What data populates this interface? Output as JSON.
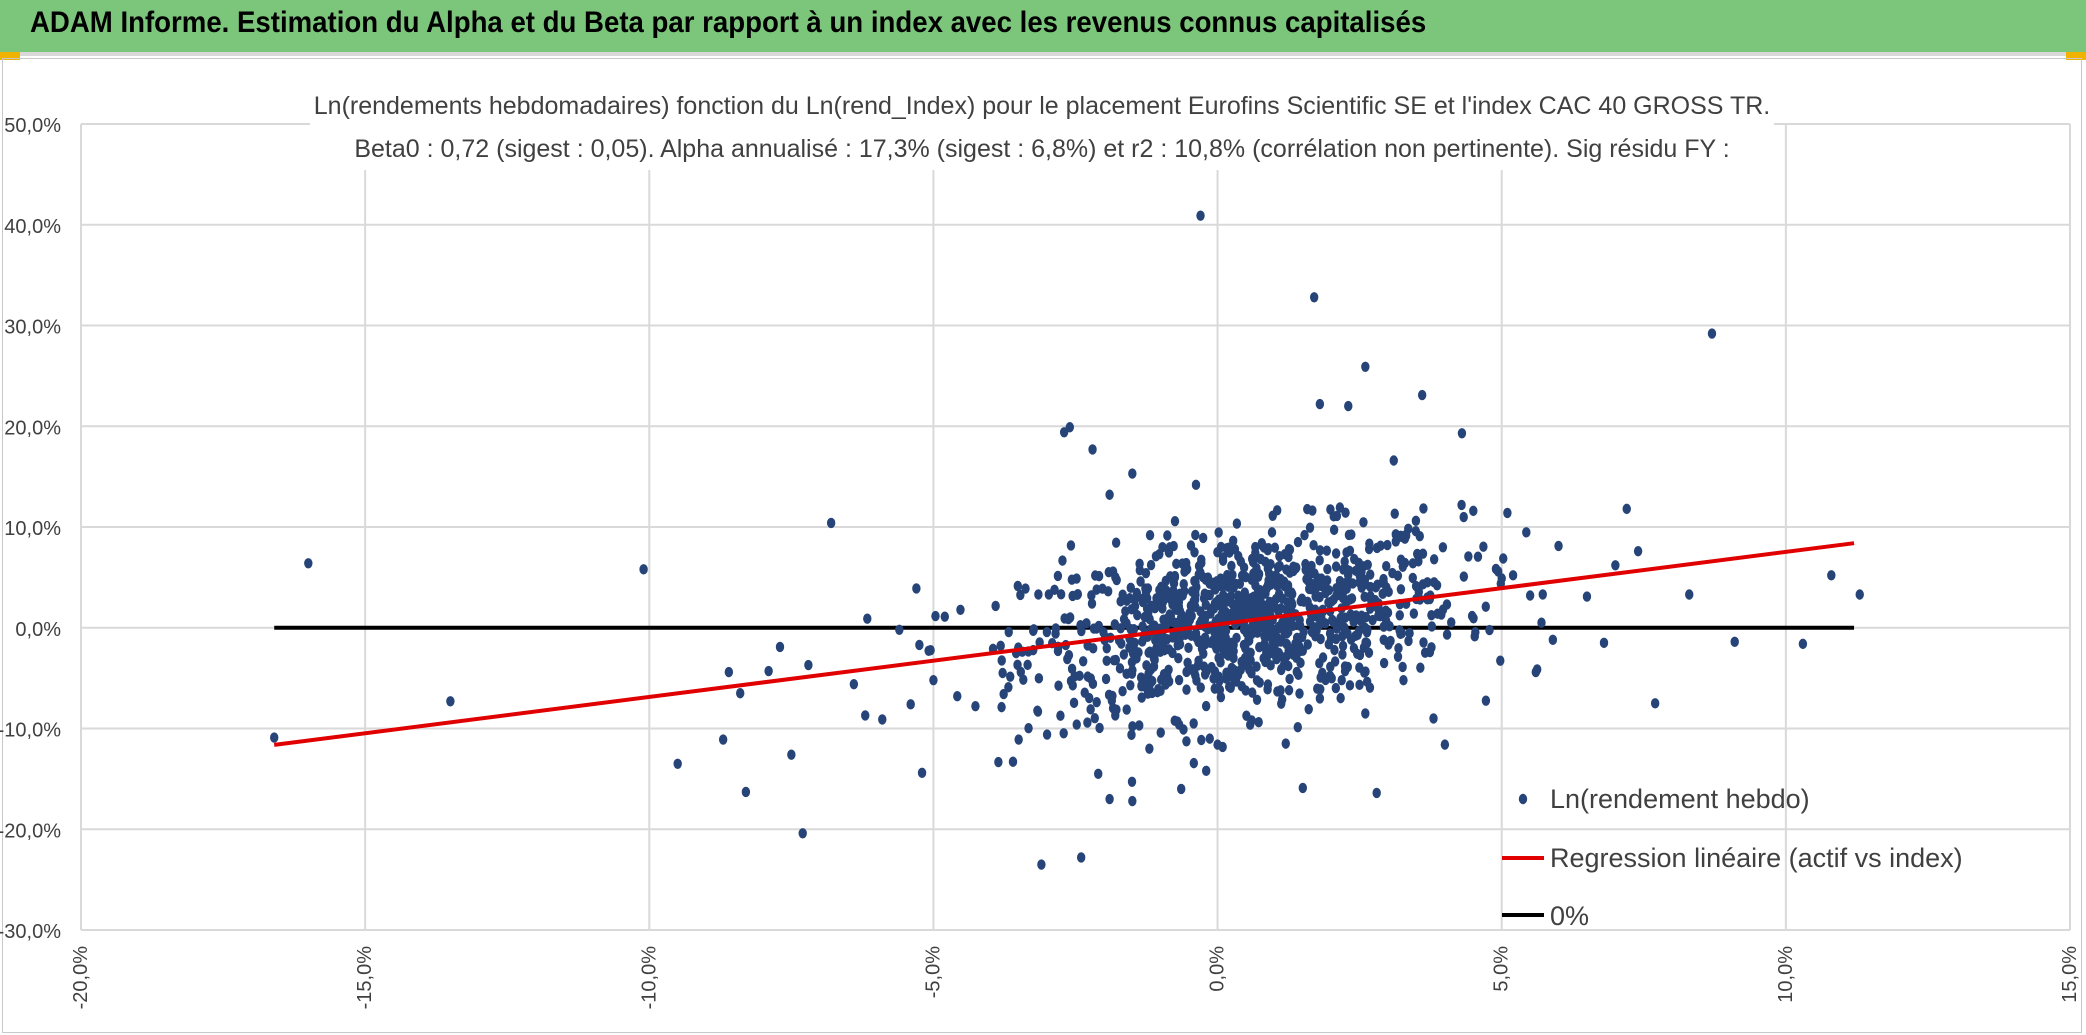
{
  "banner": {
    "title": "ADAM Informe. Estimation du Alpha et du Beta par rapport à un index avec les revenus connus capitalisés"
  },
  "colors": {
    "banner": "#7cc67c",
    "points": "#264478",
    "regression": "#e00000",
    "zero": "#000000",
    "grid": "#d9d9d9"
  },
  "chart_data": {
    "type": "scatter",
    "title": "Ln(rendements hebdomadaires) fonction du Ln(rend_Index) pour le placement Eurofins Scientific SE et l'index CAC 40 GROSS TR.",
    "subtitle": "Beta0 : 0,72 (sigest : 0,05). Alpha annualisé : 17,3% (sigest : 6,8%) et r2 : 10,8% (corrélation non pertinente). Sig résidu FY :",
    "xlim": [
      -20,
      15
    ],
    "ylim": [
      -30,
      50
    ],
    "x_ticks": [
      -20,
      -15,
      -10,
      -5,
      0,
      5,
      10,
      15
    ],
    "y_ticks": [
      -30,
      -20,
      -10,
      0,
      10,
      20,
      30,
      40,
      50
    ],
    "x_tick_labels": [
      "-20,0%",
      "-15,0%",
      "-10,0%",
      "-5,0%",
      "0,0%",
      "5,0%",
      "10,0%",
      "15,0%"
    ],
    "y_tick_labels": [
      "-30,0%",
      "-20,0%",
      "-10,0%",
      "0,0%",
      "10,0%",
      "20,0%",
      "30,0%",
      "40,0%",
      "50,0%"
    ],
    "legend": {
      "position": "bottom-right",
      "entries": [
        "Ln(rendement hebdo)",
        "Regression linéaire (actif vs index)",
        "0%"
      ]
    },
    "regression": {
      "beta": 0.72,
      "intercept": 0.33,
      "x_range": [
        -16.6,
        11.2
      ]
    },
    "zero_line": {
      "x_range": [
        -16.6,
        11.2
      ],
      "y": 0
    },
    "outliers": [
      [
        -16.6,
        -10.9
      ],
      [
        -16.0,
        6.4
      ],
      [
        -13.5,
        -7.3
      ],
      [
        -10.1,
        5.8
      ],
      [
        -9.5,
        -13.5
      ],
      [
        -8.7,
        -11.1
      ],
      [
        -8.6,
        -4.4
      ],
      [
        -8.4,
        -6.5
      ],
      [
        -8.3,
        -16.3
      ],
      [
        -7.9,
        -4.3
      ],
      [
        -7.7,
        -1.9
      ],
      [
        -7.5,
        -12.6
      ],
      [
        -7.3,
        -20.4
      ],
      [
        -7.2,
        -3.7
      ],
      [
        -6.8,
        10.4
      ],
      [
        -6.4,
        -5.6
      ],
      [
        -6.2,
        -8.7
      ],
      [
        -5.9,
        -9.1
      ],
      [
        -5.6,
        -0.2
      ],
      [
        -5.4,
        -7.6
      ],
      [
        -5.2,
        -14.4
      ],
      [
        -5.3,
        3.9
      ],
      [
        -5.0,
        -5.2
      ],
      [
        -4.8,
        1.1
      ],
      [
        -3.6,
        -13.3
      ],
      [
        -3.5,
        -11.1
      ],
      [
        -3.1,
        -23.5
      ],
      [
        -3.0,
        -10.6
      ],
      [
        -2.7,
        19.4
      ],
      [
        -2.6,
        19.9
      ],
      [
        -2.4,
        -22.8
      ],
      [
        -2.2,
        17.7
      ],
      [
        -2.1,
        -14.5
      ],
      [
        -1.9,
        -17.0
      ],
      [
        -1.9,
        13.2
      ],
      [
        -1.8,
        -8.7
      ],
      [
        -1.5,
        15.3
      ],
      [
        -1.5,
        -17.2
      ],
      [
        -1.2,
        -12.0
      ],
      [
        -1.0,
        -10.4
      ],
      [
        -0.6,
        -10.1
      ],
      [
        -0.3,
        40.9
      ],
      [
        -0.2,
        -14.2
      ],
      [
        0.0,
        -11.6
      ],
      [
        0.6,
        -9.2
      ],
      [
        1.2,
        -11.5
      ],
      [
        1.5,
        -15.9
      ],
      [
        1.7,
        32.8
      ],
      [
        1.8,
        22.2
      ],
      [
        2.1,
        11.1
      ],
      [
        2.3,
        22.0
      ],
      [
        2.6,
        25.9
      ],
      [
        2.6,
        -8.5
      ],
      [
        2.8,
        -16.4
      ],
      [
        3.1,
        16.6
      ],
      [
        3.6,
        23.1
      ],
      [
        3.8,
        -9.0
      ],
      [
        4.0,
        -11.6
      ],
      [
        4.3,
        19.3
      ],
      [
        4.5,
        11.6
      ],
      [
        5.0,
        4.9
      ],
      [
        5.1,
        11.4
      ],
      [
        5.2,
        5.2
      ],
      [
        5.5,
        3.2
      ],
      [
        5.6,
        -4.4
      ],
      [
        5.7,
        0.5
      ],
      [
        5.9,
        -1.2
      ],
      [
        6.5,
        3.1
      ],
      [
        6.8,
        -1.5
      ],
      [
        7.0,
        6.2
      ],
      [
        7.2,
        11.8
      ],
      [
        7.4,
        7.6
      ],
      [
        7.7,
        -7.5
      ],
      [
        8.3,
        3.3
      ],
      [
        8.7,
        29.2
      ],
      [
        9.1,
        -1.4
      ],
      [
        10.3,
        -1.6
      ],
      [
        10.8,
        5.2
      ],
      [
        11.3,
        3.3
      ]
    ],
    "cluster": {
      "n": 1050,
      "x_mean": 0.45,
      "x_sd": 1.9,
      "y_mean": 0.7,
      "y_sd": 4.3,
      "beta": 0.72,
      "x_clip": [
        -6.2,
        6.0
      ],
      "y_clip": [
        -16.0,
        16.0
      ],
      "seed": 12345
    }
  }
}
